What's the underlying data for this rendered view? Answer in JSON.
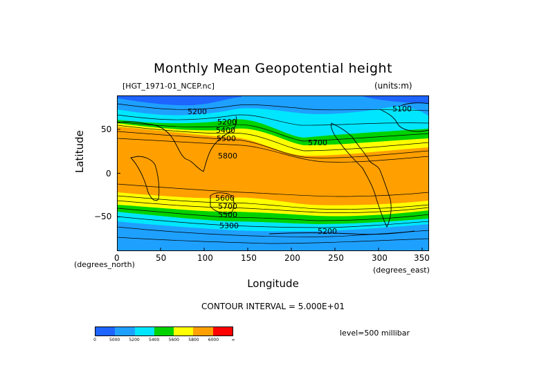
{
  "title": "Monthly Mean Geopotential height",
  "filename": "[HGT_1971-01_NCEP.nc]",
  "units": "(units:m)",
  "y_axis": {
    "label": "Latitude",
    "unit": "(degrees_north)",
    "ticks": [
      "50",
      "0",
      "−50"
    ]
  },
  "x_axis": {
    "label": "Longitude",
    "unit": "(degrees_east)",
    "ticks": [
      "0",
      "50",
      "100",
      "150",
      "200",
      "250",
      "300",
      "350"
    ]
  },
  "contour_interval": "CONTOUR INTERVAL = 5.000E+01",
  "level": "level=500 millibar",
  "colorbar": {
    "colors": [
      "#1e64ff",
      "#1ea0ff",
      "#00e6ff",
      "#00d200",
      "#ffff00",
      "#ffa000",
      "#ff0000"
    ],
    "labels": [
      "0",
      "5000",
      "5200",
      "5400",
      "5600",
      "5800",
      "6000",
      "∞"
    ]
  },
  "map_colors": {
    "below_5000": "#1e64ff",
    "5000_5200": "#1ea0ff",
    "5200_5400": "#00e6ff",
    "5400_5600": "#00d200",
    "5600_5800": "#ffff00",
    "above_5800": "#ffa000"
  },
  "contour_labels": [
    "5100",
    "5200",
    "5300",
    "5400",
    "5500",
    "5600",
    "5700",
    "5800"
  ]
}
